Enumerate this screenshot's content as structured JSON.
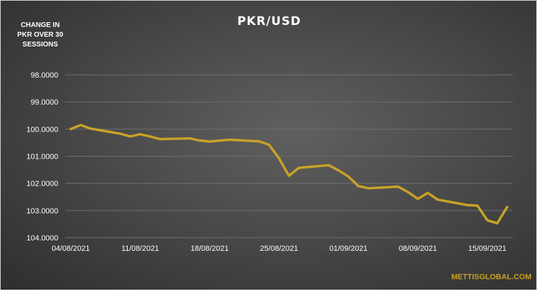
{
  "chart_data": {
    "type": "line",
    "title": "PKR/USD",
    "ylabel": "CHANGE IN PKR OVER 30 SESSIONS",
    "ylabel_lines": [
      "CHANGE IN",
      "PKR OVER 30",
      "SESSIONS"
    ],
    "ylim": [
      98,
      104
    ],
    "y_axis_inverted": true,
    "yticks": [
      "98.0000",
      "99.0000",
      "100.0000",
      "101.0000",
      "102.0000",
      "103.0000",
      "104.0000"
    ],
    "xticks": [
      "04/08/2021",
      "11/08/2021",
      "18/08/2021",
      "25/08/2021",
      "01/09/2021",
      "08/09/2021",
      "15/09/2021"
    ],
    "x_range": [
      "04/08/2021",
      "17/09/2021"
    ],
    "grid": true,
    "line_color": "#c9a227",
    "series": [
      {
        "x": [
          "04/08/2021",
          "05/08/2021",
          "06/08/2021",
          "09/08/2021",
          "10/08/2021",
          "11/08/2021",
          "12/08/2021",
          "13/08/2021",
          "16/08/2021",
          "17/08/2021",
          "18/08/2021",
          "20/08/2021",
          "23/08/2021",
          "24/08/2021",
          "25/08/2021",
          "26/08/2021",
          "27/08/2021",
          "30/08/2021",
          "31/08/2021",
          "01/09/2021",
          "02/09/2021",
          "03/09/2021",
          "06/09/2021",
          "07/09/2021",
          "08/09/2021",
          "09/09/2021",
          "10/09/2021",
          "13/09/2021",
          "14/09/2021",
          "15/09/2021",
          "16/09/2021",
          "17/09/2021"
        ],
        "values": [
          100.0,
          99.85,
          99.98,
          100.17,
          100.27,
          100.19,
          100.27,
          100.37,
          100.34,
          100.42,
          100.46,
          100.39,
          100.45,
          100.58,
          101.08,
          101.72,
          101.43,
          101.33,
          101.52,
          101.75,
          102.1,
          102.18,
          102.12,
          102.32,
          102.57,
          102.35,
          102.6,
          102.8,
          102.82,
          103.36,
          103.47,
          102.87
        ]
      }
    ]
  },
  "source_label": "METTISGLOBAL.COM"
}
